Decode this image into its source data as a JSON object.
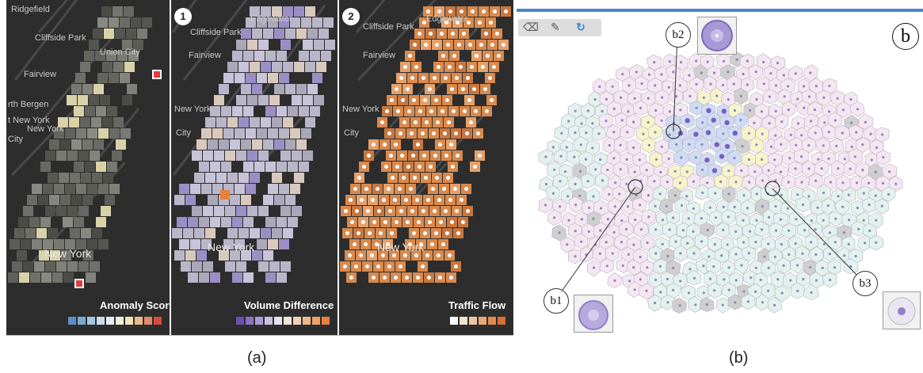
{
  "figure": {
    "captions": {
      "a": "(a)",
      "b": "(b)"
    },
    "panel_a": {
      "maps": [
        {
          "badge": "",
          "labels": [
            "Ridgefield",
            "Cliffside Park",
            "Fairview",
            "Union City",
            "rth Bergen",
            "New York",
            "t New York",
            "City",
            "New York"
          ],
          "legend_title": "Anomaly Score",
          "legend_colors": [
            "#5b8fc7",
            "#7aa9d6",
            "#a6c6e4",
            "#c9dcec",
            "#e9edf1",
            "#f3efd9",
            "#efe4b6",
            "#ebb98a",
            "#e08a6a",
            "#d94b3c"
          ]
        },
        {
          "badge": "1",
          "labels": [
            "Edgewater",
            "Cliffside Park",
            "Fairview",
            "New York",
            "City",
            "New York"
          ],
          "legend_title": "Volume Difference",
          "legend_colors": [
            "#6d4fb0",
            "#8a74c2",
            "#a99bd3",
            "#c8c0e2",
            "#e6e2ef",
            "#f1e6dc",
            "#f1d2b7",
            "#efb98a",
            "#eca266",
            "#e9803b"
          ]
        },
        {
          "badge": "2",
          "labels": [
            "Edgewater",
            "Cliffside Park",
            "Fairview",
            "New York",
            "City",
            "New York"
          ],
          "legend_title": "Traffic Flow",
          "legend_colors": [
            "#ffffff",
            "#f6e1cc",
            "#efc5a1",
            "#e8a877",
            "#e08c50",
            "#d97230"
          ]
        }
      ]
    },
    "panel_b": {
      "label": "b",
      "toolbar": {
        "tools": [
          "eraser-icon",
          "pencil-icon",
          "refresh-icon"
        ]
      },
      "callouts": [
        "b1",
        "b2",
        "b3"
      ],
      "region_colors": {
        "pink": "#f4e7f2",
        "green": "#e3f2ee",
        "yellow": "#f7f4cc",
        "blue": "#cfdcf3",
        "gray": "#cfcfcf"
      },
      "accent": "#4a86c8"
    }
  }
}
